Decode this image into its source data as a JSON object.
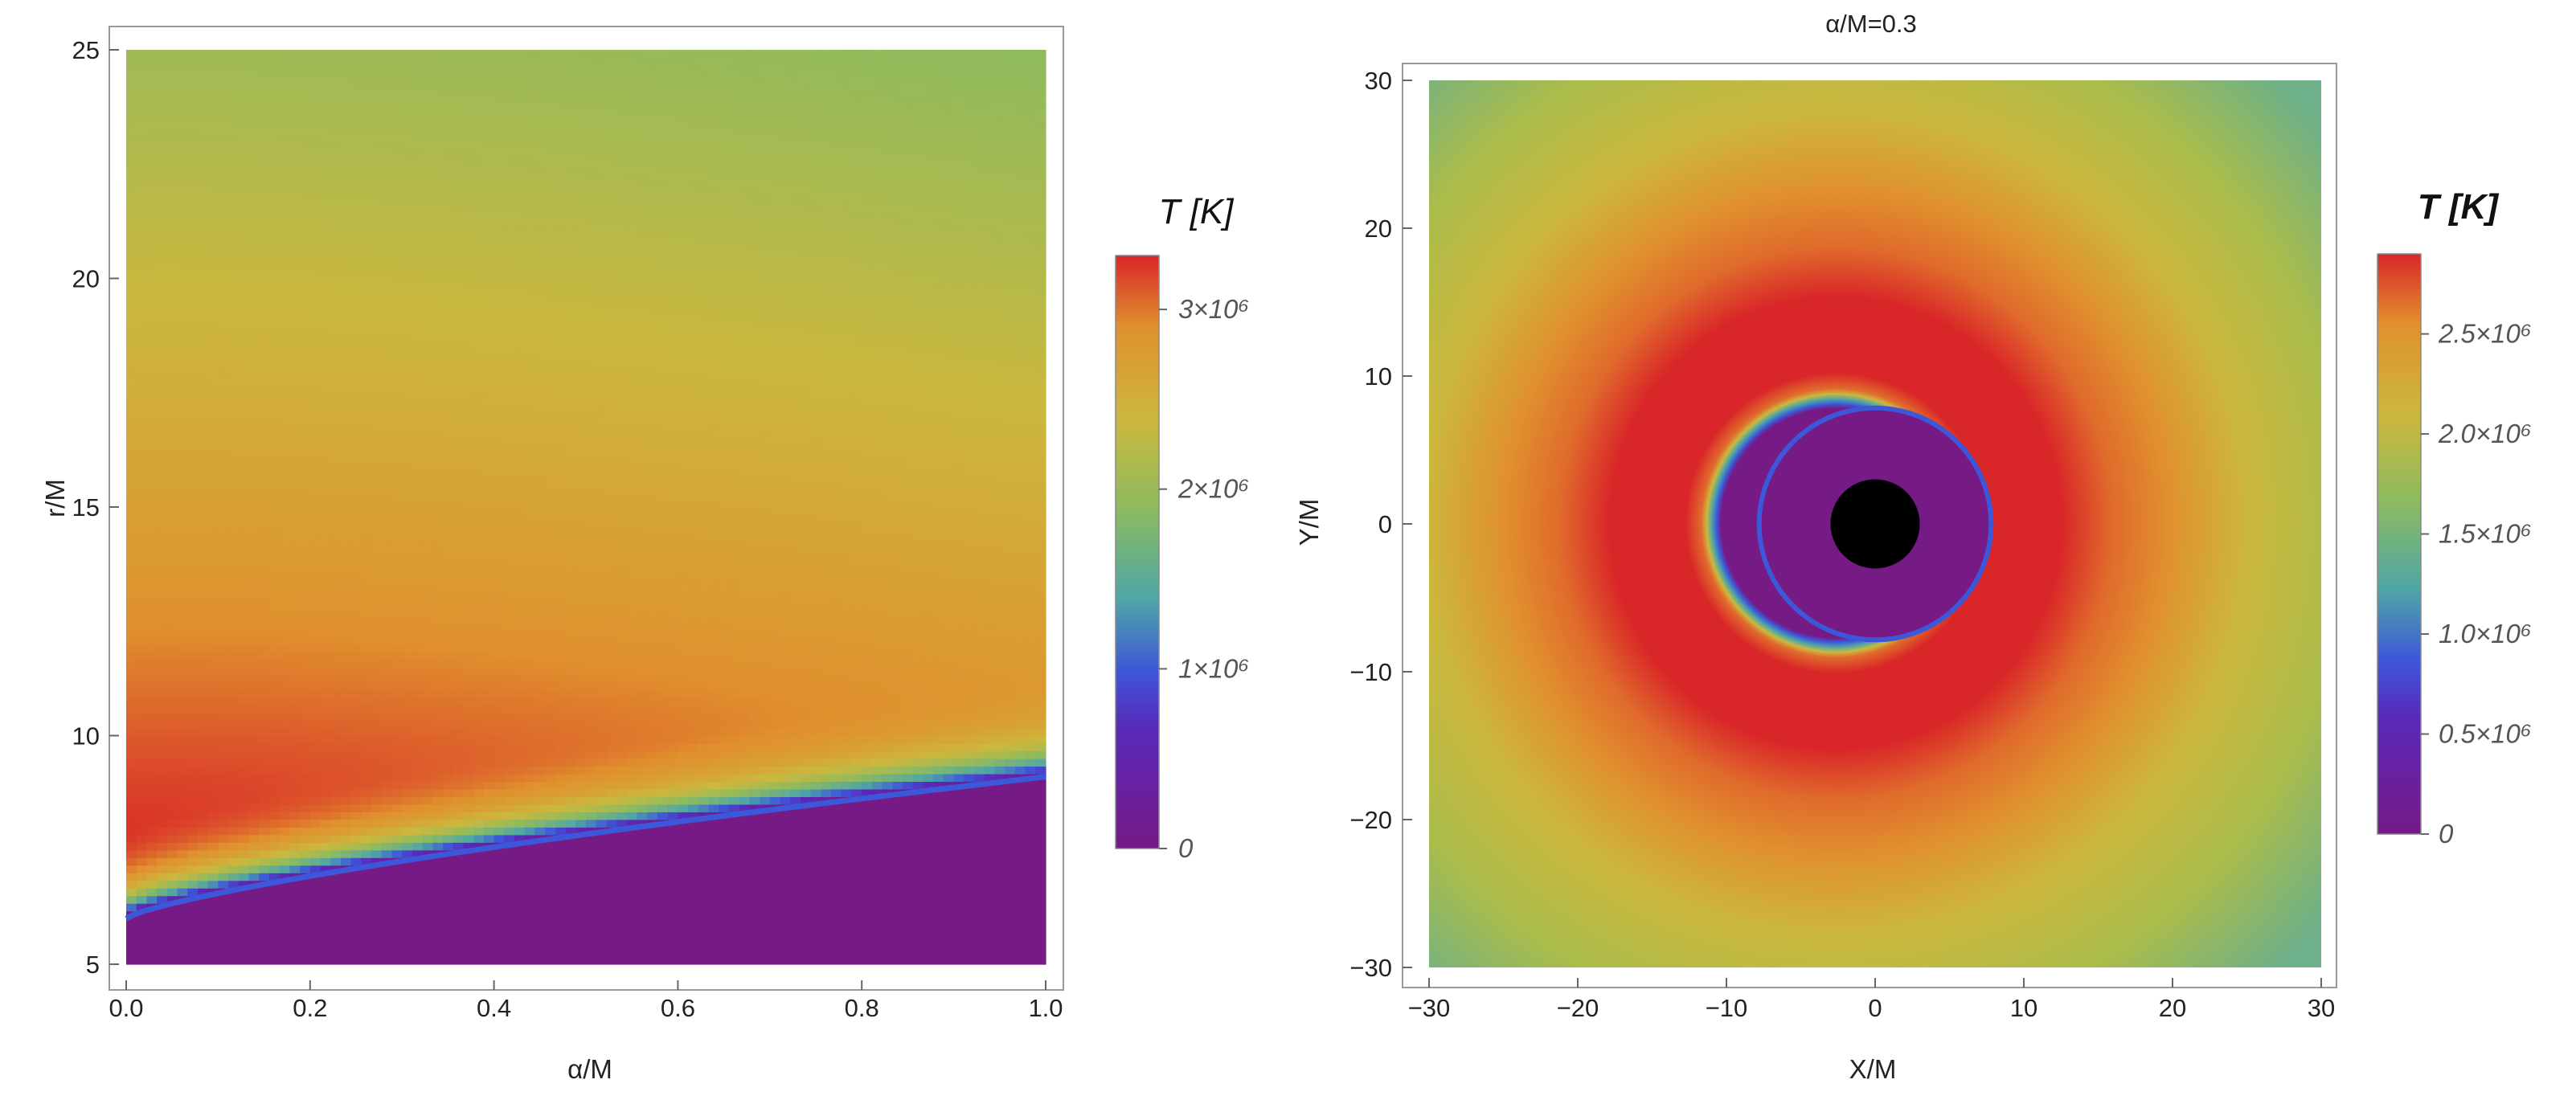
{
  "chart_data": [
    {
      "type": "heatmap",
      "title": "",
      "xlabel": "α/M",
      "ylabel": "r/M",
      "xlim": [
        0,
        1
      ],
      "ylim": [
        5,
        25
      ],
      "x_ticks": [
        "0.0",
        "0.2",
        "0.4",
        "0.6",
        "0.8",
        "1.0"
      ],
      "y_ticks": [
        "5",
        "10",
        "15",
        "20",
        "25"
      ],
      "colorbar": {
        "title": "T [K]",
        "range": [
          0,
          3300000
        ],
        "ticks": [
          {
            "value": 0,
            "label": "0"
          },
          {
            "value": 1000000,
            "label": "1×10⁶"
          },
          {
            "value": 2000000,
            "label": "2×10⁶"
          },
          {
            "value": 3000000,
            "label": "3×10⁶"
          }
        ]
      },
      "z_description": "Temperature vs spin α/M and radius r/M; zero (purple) below inner disk edge r ≈ 6 + 3.1·(α/M)^0.75, peak ≈ 3.3×10⁶ K near r ≈ 9.5 at α/M = 0",
      "inner_edge": [
        [
          0.0,
          6.0
        ],
        [
          0.2,
          7.2
        ],
        [
          0.4,
          7.9
        ],
        [
          0.6,
          8.5
        ],
        [
          0.8,
          8.9
        ],
        [
          1.0,
          9.1
        ]
      ],
      "grid": false
    },
    {
      "type": "heatmap",
      "title": "α/M=0.3",
      "xlabel": "X/M",
      "ylabel": "Y/M",
      "xlim": [
        -30,
        30
      ],
      "ylim": [
        -30,
        30
      ],
      "x_ticks": [
        "−30",
        "−20",
        "−10",
        "0",
        "10",
        "20",
        "30"
      ],
      "y_ticks": [
        "−30",
        "−20",
        "−10",
        "0",
        "10",
        "20",
        "30"
      ],
      "colorbar": {
        "title": "T [K]",
        "range": [
          0,
          2900000
        ],
        "ticks": [
          {
            "value": 0,
            "label": "0"
          },
          {
            "value": 500000,
            "label": "0.5×10⁶"
          },
          {
            "value": 1000000,
            "label": "1.0×10⁶"
          },
          {
            "value": 1500000,
            "label": "1.5×10⁶"
          },
          {
            "value": 2000000,
            "label": "2.0×10⁶"
          },
          {
            "value": 2500000,
            "label": "2.5×10⁶"
          }
        ]
      },
      "z_description": "Face-on disk temperature; black hole shadow radius ≈ 3, zero-temperature region to r ≈ 7.8, peak ring near r ≈ 9–10",
      "black_hole_radius": 3.0,
      "inner_edge_radius": 7.8,
      "peak_radius": 9.5,
      "grid": false
    }
  ],
  "colors": {
    "purple": "#761a86",
    "blue": "#3d57d9",
    "teal": "#4fa6a6",
    "green": "#8fbb5e",
    "yellow": "#cbb83e",
    "orange": "#e0902e",
    "red": "#d92628",
    "black": "#000000"
  }
}
